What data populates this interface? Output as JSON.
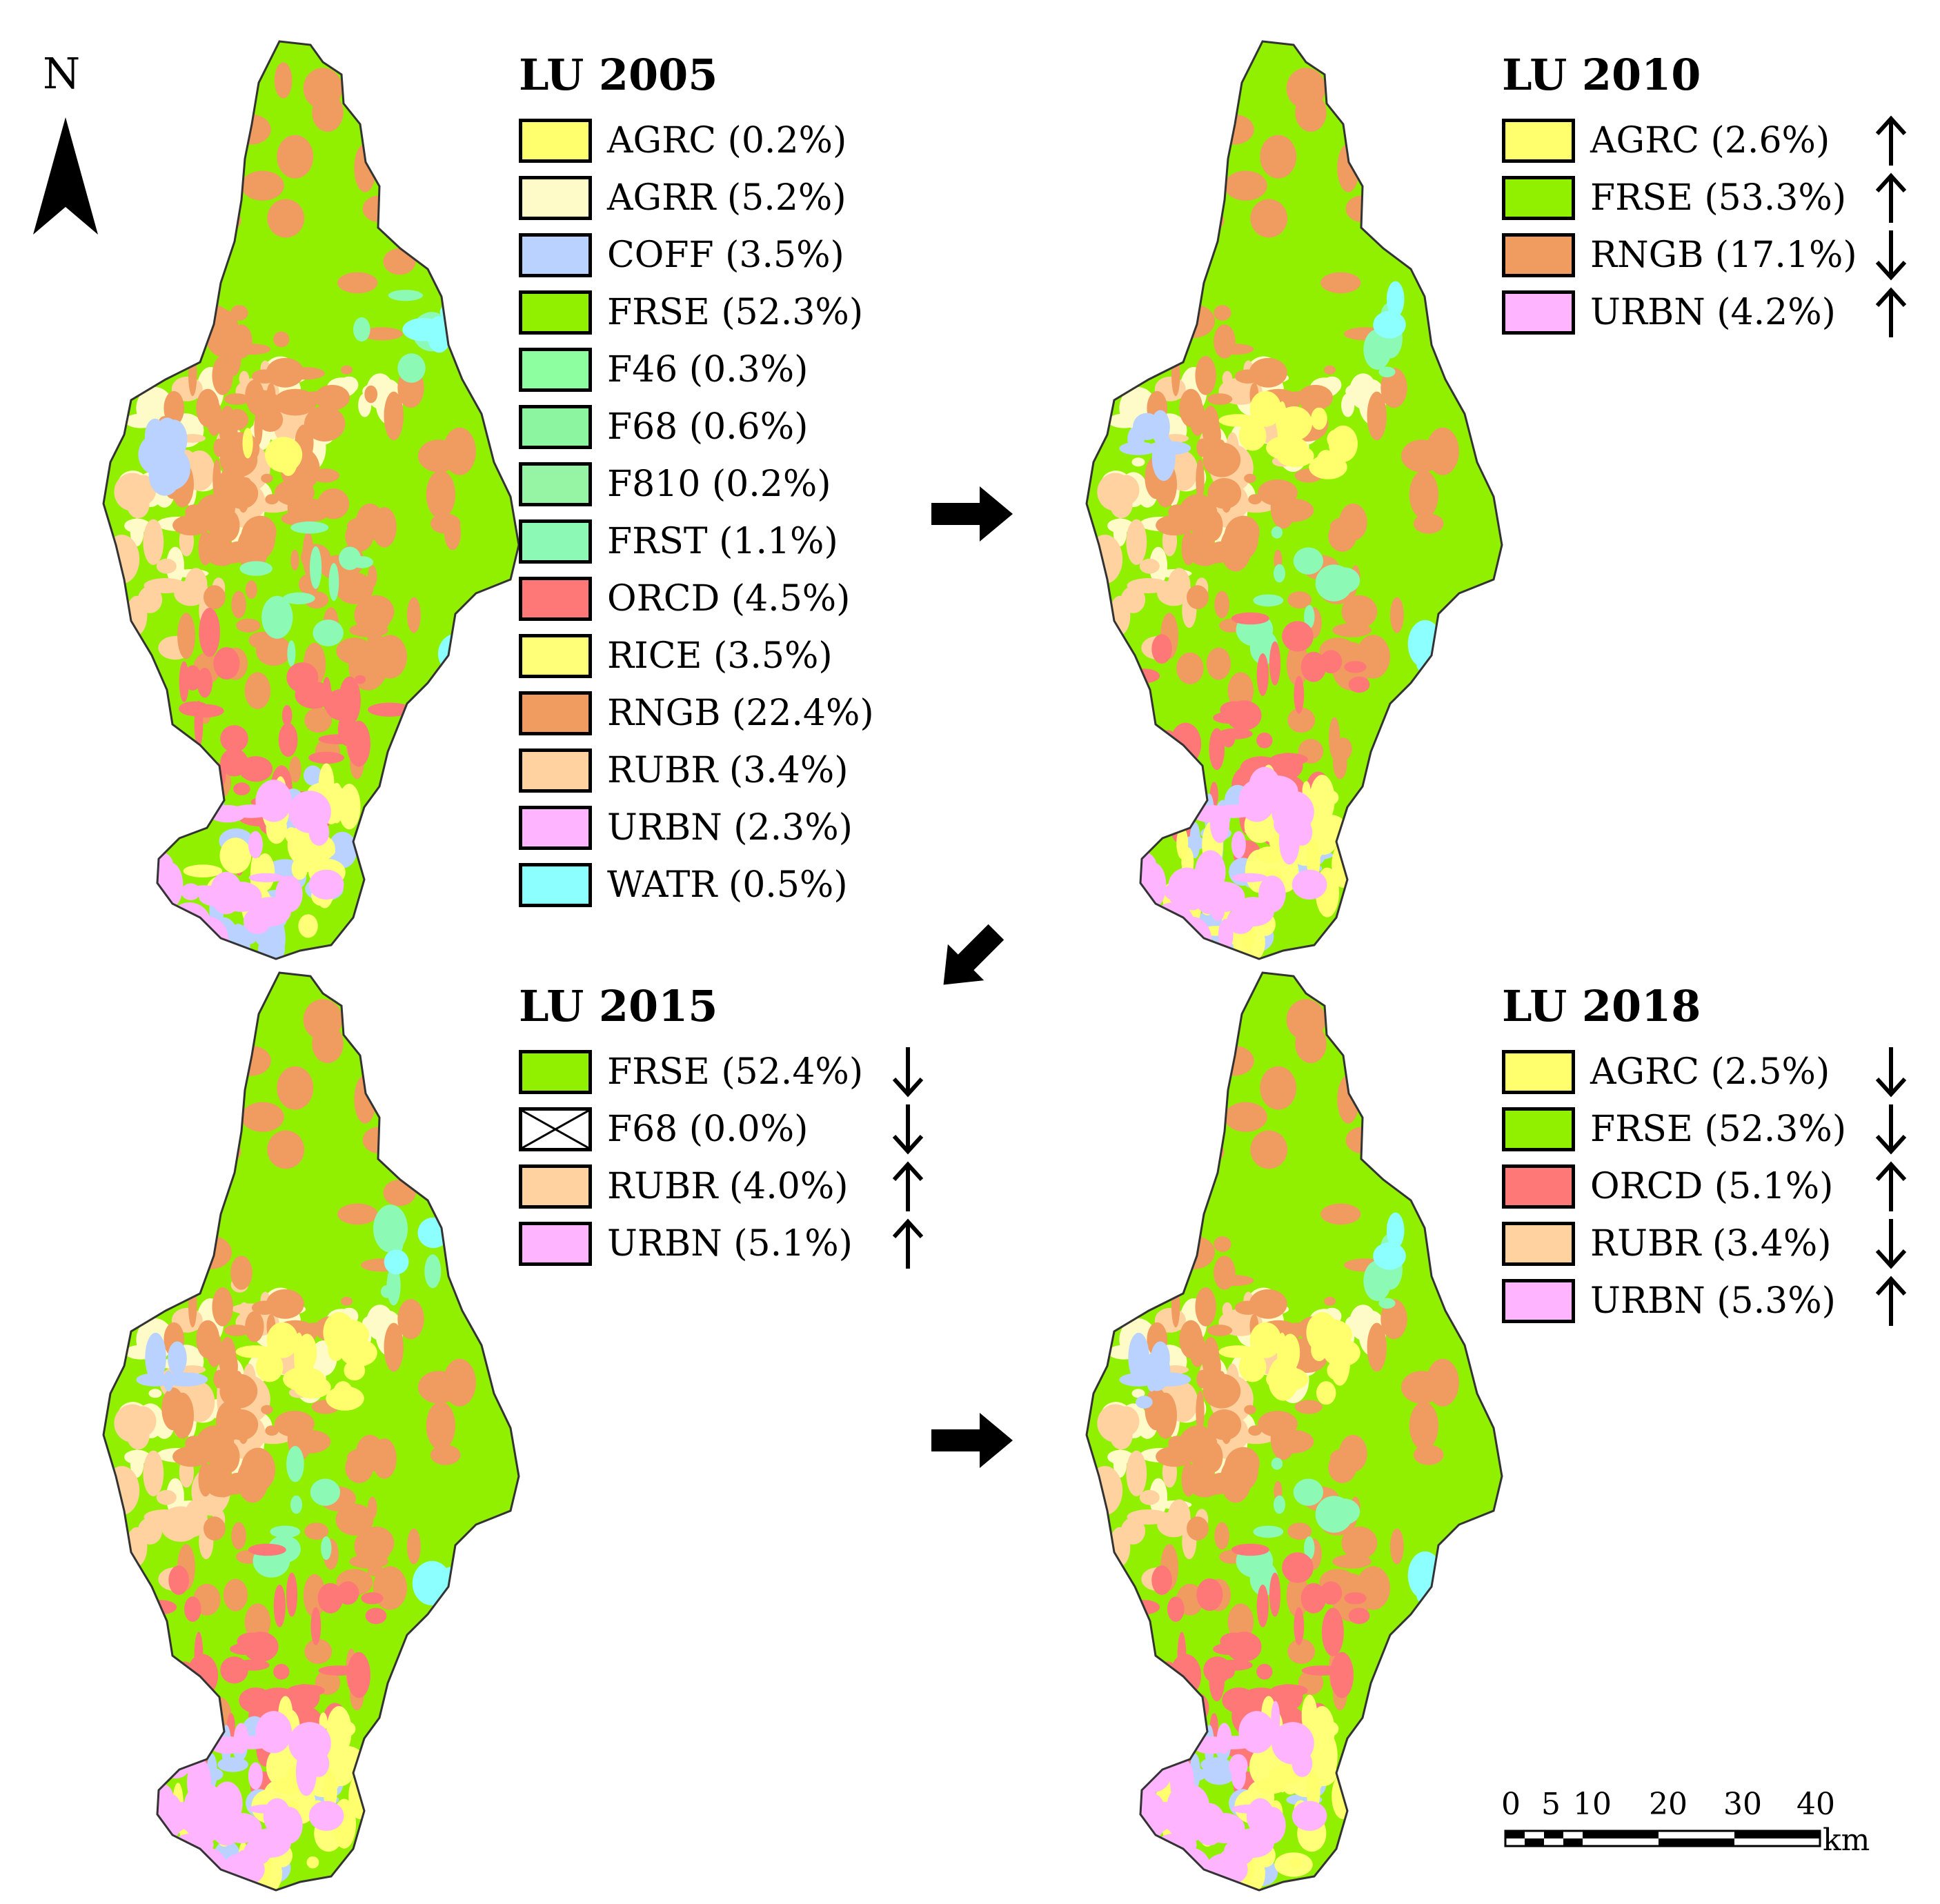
{
  "colors": {
    "AGRC": "#ffff6e",
    "AGRR": "#fffbc8",
    "COFF": "#b9d2ff",
    "FRSE": "#91f000",
    "F46": "#8effa0",
    "F68": "#8cf5a0",
    "F810": "#96f5a5",
    "FRST": "#8cfab4",
    "ORCD": "#ff7878",
    "RICE": "#ffff78",
    "RNGB": "#f09b5f",
    "RUBR": "#ffd2a0",
    "URBN": "#ffb4ff",
    "WATR": "#8cffff",
    "crossed": "#ffffff"
  },
  "north": {
    "label": "N",
    "icon": "north-arrow-icon"
  },
  "scale": {
    "ticks": [
      "0",
      "5",
      "10",
      "20",
      "30",
      "40"
    ],
    "unit": "km"
  },
  "maps": [
    {
      "year": "2005",
      "legend_title": "LU 2005",
      "items": [
        {
          "code": "AGRC",
          "label": "AGRC (0.2%)",
          "percent": 0.2
        },
        {
          "code": "AGRR",
          "label": "AGRR (5.2%)",
          "percent": 5.2
        },
        {
          "code": "COFF",
          "label": "COFF (3.5%)",
          "percent": 3.5
        },
        {
          "code": "FRSE",
          "label": "FRSE (52.3%)",
          "percent": 52.3
        },
        {
          "code": "F46",
          "label": "F46 (0.3%)",
          "percent": 0.3
        },
        {
          "code": "F68",
          "label": "F68 (0.6%)",
          "percent": 0.6
        },
        {
          "code": "F810",
          "label": "F810 (0.2%)",
          "percent": 0.2
        },
        {
          "code": "FRST",
          "label": "FRST (1.1%)",
          "percent": 1.1
        },
        {
          "code": "ORCD",
          "label": "ORCD (4.5%)",
          "percent": 4.5
        },
        {
          "code": "RICE",
          "label": "RICE (3.5%)",
          "percent": 3.5
        },
        {
          "code": "RNGB",
          "label": "RNGB (22.4%)",
          "percent": 22.4
        },
        {
          "code": "RUBR",
          "label": "RUBR (3.4%)",
          "percent": 3.4
        },
        {
          "code": "URBN",
          "label": "URBN (2.3%)",
          "percent": 2.3
        },
        {
          "code": "WATR",
          "label": "WATR (0.5%)",
          "percent": 0.5
        }
      ]
    },
    {
      "year": "2010",
      "legend_title": "LU 2010",
      "items": [
        {
          "code": "AGRC",
          "label": "AGRC (2.6%)",
          "percent": 2.6,
          "trend": "up"
        },
        {
          "code": "FRSE",
          "label": "FRSE (53.3%)",
          "percent": 53.3,
          "trend": "up"
        },
        {
          "code": "RNGB",
          "label": "RNGB (17.1%)",
          "percent": 17.1,
          "trend": "down"
        },
        {
          "code": "URBN",
          "label": "URBN (4.2%)",
          "percent": 4.2,
          "trend": "up"
        }
      ]
    },
    {
      "year": "2015",
      "legend_title": "LU 2015",
      "items": [
        {
          "code": "FRSE",
          "label": "FRSE (52.4%)",
          "percent": 52.4,
          "trend": "down"
        },
        {
          "code": "F68",
          "label": "F68 (0.0%)",
          "percent": 0.0,
          "trend": "down",
          "crossed": true
        },
        {
          "code": "RUBR",
          "label": "RUBR (4.0%)",
          "percent": 4.0,
          "trend": "up"
        },
        {
          "code": "URBN",
          "label": "URBN (5.1%)",
          "percent": 5.1,
          "trend": "up"
        }
      ]
    },
    {
      "year": "2018",
      "legend_title": "LU 2018",
      "items": [
        {
          "code": "AGRC",
          "label": "AGRC (2.5%)",
          "percent": 2.5,
          "trend": "down"
        },
        {
          "code": "FRSE",
          "label": "FRSE (52.3%)",
          "percent": 52.3,
          "trend": "down"
        },
        {
          "code": "ORCD",
          "label": "ORCD (5.1%)",
          "percent": 5.1,
          "trend": "up"
        },
        {
          "code": "RUBR",
          "label": "RUBR (3.4%)",
          "percent": 3.4,
          "trend": "down"
        },
        {
          "code": "URBN",
          "label": "URBN (5.3%)",
          "percent": 5.3,
          "trend": "up"
        }
      ]
    }
  ]
}
